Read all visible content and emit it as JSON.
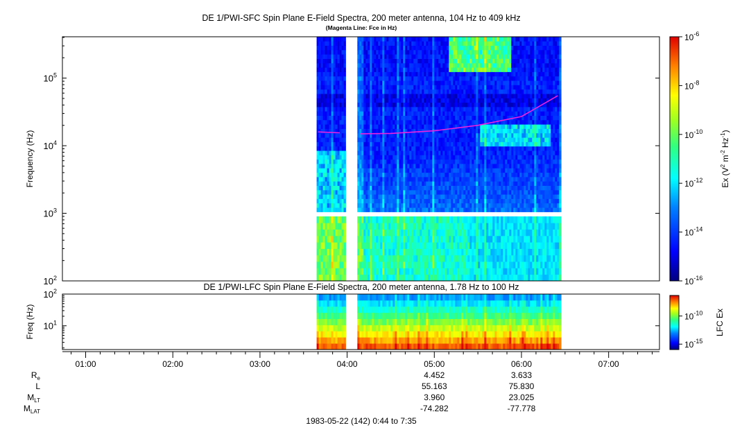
{
  "chart_data": [
    {
      "type": "heatmap",
      "title": "DE 1/PWI-SFC  Spin Plane E-Field Spectra, 200 meter antenna, 104 Hz to 409 kHz",
      "subtitle": "(Magenta Line: Fce in Hz)",
      "ylabel": "Frequency (Hz)",
      "yscale": "log",
      "ylim": [
        100,
        409000
      ],
      "yticks": [
        {
          "value": 100,
          "base": "10",
          "exp": "2"
        },
        {
          "value": 1000,
          "base": "10",
          "exp": "3"
        },
        {
          "value": 10000,
          "base": "10",
          "exp": "4"
        },
        {
          "value": 100000,
          "base": "10",
          "exp": "5"
        }
      ],
      "colorbar": {
        "label_parts": {
          "a": "Ex (V",
          "b": "2",
          "c": " m",
          "d": "-2",
          "e": " Hz",
          "f": "-1",
          "g": ")"
        },
        "scale": "log",
        "range": [
          1e-16,
          1e-06
        ],
        "ticks": [
          {
            "value": 1e-06,
            "base": "10",
            "exp": "-6"
          },
          {
            "value": 1e-08,
            "base": "10",
            "exp": "-8"
          },
          {
            "value": 1e-10,
            "base": "10",
            "exp": "-10"
          },
          {
            "value": 1e-12,
            "base": "10",
            "exp": "-12"
          },
          {
            "value": 1e-14,
            "base": "10",
            "exp": "-14"
          },
          {
            "value": 1e-16,
            "base": "10",
            "exp": "-16"
          }
        ]
      },
      "data_intervals": [
        [
          "03:39",
          "03:59"
        ],
        [
          "04:07",
          "06:27"
        ]
      ],
      "fce_line": {
        "color": "#ee22dd",
        "segments": [
          [
            [
              "03:40",
              16000
            ],
            [
              "03:55",
              15500
            ]
          ],
          [
            [
              "04:09",
              15000
            ],
            [
              "04:30",
              15200
            ],
            [
              "05:00",
              16600
            ],
            [
              "05:30",
              20000
            ],
            [
              "06:00",
              27000
            ],
            [
              "06:25",
              55000
            ]
          ]
        ]
      }
    },
    {
      "type": "heatmap",
      "title": "DE 1/PWI-LFC  Spin Plane E-Field Spectra, 200 meter antenna, 1.78 Hz to 100 Hz",
      "ylabel": "Freq (Hz)",
      "yscale": "log",
      "ylim": [
        1.78,
        100
      ],
      "yticks": [
        {
          "value": 10,
          "base": "10",
          "exp": "1"
        },
        {
          "value": 100,
          "base": "10",
          "exp": "2"
        }
      ],
      "colorbar": {
        "label": "LFC Ex",
        "scale": "log",
        "ticks": [
          {
            "value": 1e-10,
            "base": "10",
            "exp": "-10"
          },
          {
            "value": 1e-15,
            "base": "10",
            "exp": "-15"
          }
        ]
      },
      "data_intervals": [
        [
          "03:39",
          "03:59"
        ],
        [
          "04:07",
          "06:27"
        ]
      ]
    }
  ],
  "time_axis": {
    "ticks": [
      "01:00",
      "02:00",
      "03:00",
      "04:00",
      "05:00",
      "06:00",
      "07:00"
    ],
    "range": [
      "00:44",
      "07:35"
    ]
  },
  "ephemeris": {
    "rows": [
      {
        "label": "R",
        "sub": "e",
        "values": [
          "4.452",
          "3.633"
        ]
      },
      {
        "label": "L",
        "sub": "",
        "values": [
          "55.163",
          "75.830"
        ]
      },
      {
        "label": "M",
        "sub": "LT",
        "values": [
          "3.960",
          "23.025"
        ]
      },
      {
        "label": "M",
        "sub": "LAT",
        "values": [
          "-74.282",
          "-77.778"
        ]
      }
    ],
    "columns": [
      "05:00",
      "06:00"
    ]
  },
  "footer": "1983-05-22 (142) 0:44 to 7:35"
}
